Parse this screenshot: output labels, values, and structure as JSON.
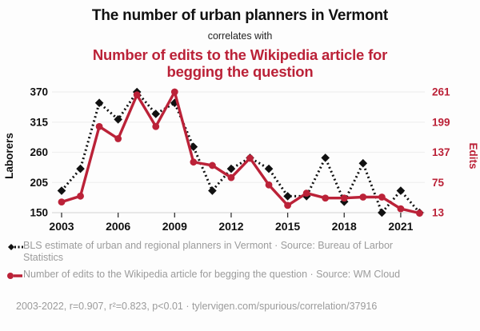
{
  "header": {
    "title": "The number of urban planners in Vermont",
    "subtitle": "correlates with",
    "title2": "Number of edits to the Wikipedia article for begging the question"
  },
  "chart_data": {
    "type": "line",
    "x": [
      2003,
      2004,
      2005,
      2006,
      2007,
      2008,
      2009,
      2010,
      2011,
      2012,
      2013,
      2014,
      2015,
      2016,
      2017,
      2018,
      2019,
      2020,
      2021,
      2022
    ],
    "x_ticks": [
      2003,
      2006,
      2009,
      2012,
      2015,
      2018,
      2021
    ],
    "series": [
      {
        "id": "planners",
        "name": "BLS estimate of urban and regional planners in Vermont",
        "axis": "left",
        "style": "dashed-diamond",
        "color": "#111111",
        "values": [
          190,
          230,
          350,
          320,
          370,
          330,
          350,
          270,
          190,
          230,
          250,
          230,
          180,
          180,
          250,
          170,
          240,
          150,
          190,
          150
        ]
      },
      {
        "id": "edits",
        "name": "Number of edits to the Wikipedia article for begging the question",
        "axis": "right",
        "style": "solid-circle",
        "color": "#bb2238",
        "values": [
          35,
          47,
          190,
          165,
          255,
          190,
          261,
          117,
          110,
          85,
          125,
          70,
          28,
          53,
          43,
          43,
          45,
          45,
          21,
          12
        ]
      }
    ],
    "left_axis": {
      "label": "Laborers",
      "ticks": [
        370,
        315,
        260,
        205,
        150
      ],
      "range": [
        150,
        370
      ],
      "color": "#111111"
    },
    "right_axis": {
      "label": "Edits",
      "ticks": [
        261,
        199,
        137,
        75,
        13
      ],
      "range": [
        13,
        261
      ],
      "color": "#bb2238"
    },
    "grid": true,
    "legend_position": "bottom"
  },
  "legend": [
    {
      "marker": "black-diamond-dashed-icon",
      "text": "BLS estimate of urban and regional planners in Vermont · Source: Bureau of Larbor Statistics"
    },
    {
      "marker": "red-circle-solid-icon",
      "text": "Number of edits to the Wikipedia article for begging the question · Source: WM Cloud"
    }
  ],
  "footer": {
    "stats": "2003-2022, r=0.907, r²=0.823, p<0.01 · tylervigen.com/spurious/correlation/37916"
  },
  "colors": {
    "accent_red": "#bb2238",
    "series_black": "#111111",
    "text_gray": "#9b9b9b",
    "grid": "#f0f0f0",
    "axis_line": "#dcdcdc",
    "tick": "#333333",
    "background": "#fdfdfd"
  }
}
